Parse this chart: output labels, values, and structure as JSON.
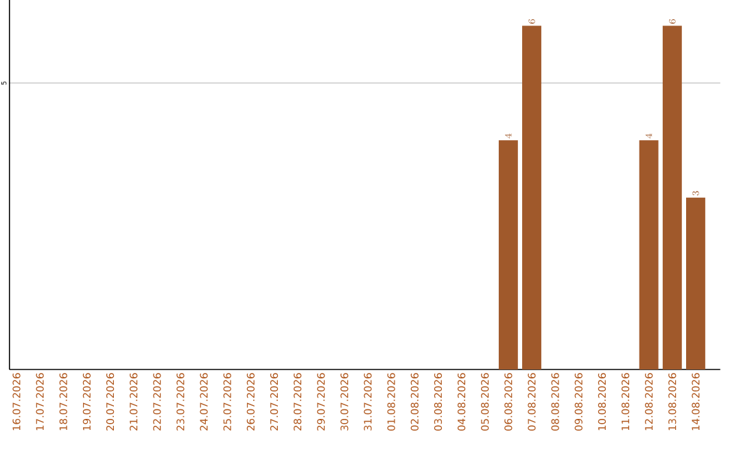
{
  "chart_data": {
    "type": "bar",
    "categories": [
      "16.07.2026",
      "17.07.2026",
      "18.07.2026",
      "19.07.2026",
      "20.07.2026",
      "21.07.2026",
      "22.07.2026",
      "23.07.2026",
      "24.07.2026",
      "25.07.2026",
      "26.07.2026",
      "27.07.2026",
      "28.07.2026",
      "29.07.2026",
      "30.07.2026",
      "31.07.2026",
      "01.08.2026",
      "02.08.2026",
      "03.08.2026",
      "04.08.2026",
      "05.08.2026",
      "06.08.2026",
      "07.08.2026",
      "08.08.2026",
      "09.08.2026",
      "10.08.2026",
      "11.08.2026",
      "12.08.2026",
      "13.08.2026",
      "14.08.2026"
    ],
    "values": [
      null,
      null,
      null,
      null,
      null,
      null,
      null,
      null,
      null,
      null,
      null,
      null,
      null,
      null,
      null,
      null,
      null,
      null,
      null,
      null,
      null,
      4,
      6,
      null,
      null,
      null,
      null,
      4,
      6,
      3
    ],
    "data_labels": true,
    "color": "#a0592b",
    "ylim": [
      0,
      6.45
    ],
    "yticks": [
      5
    ],
    "grid": "y"
  }
}
